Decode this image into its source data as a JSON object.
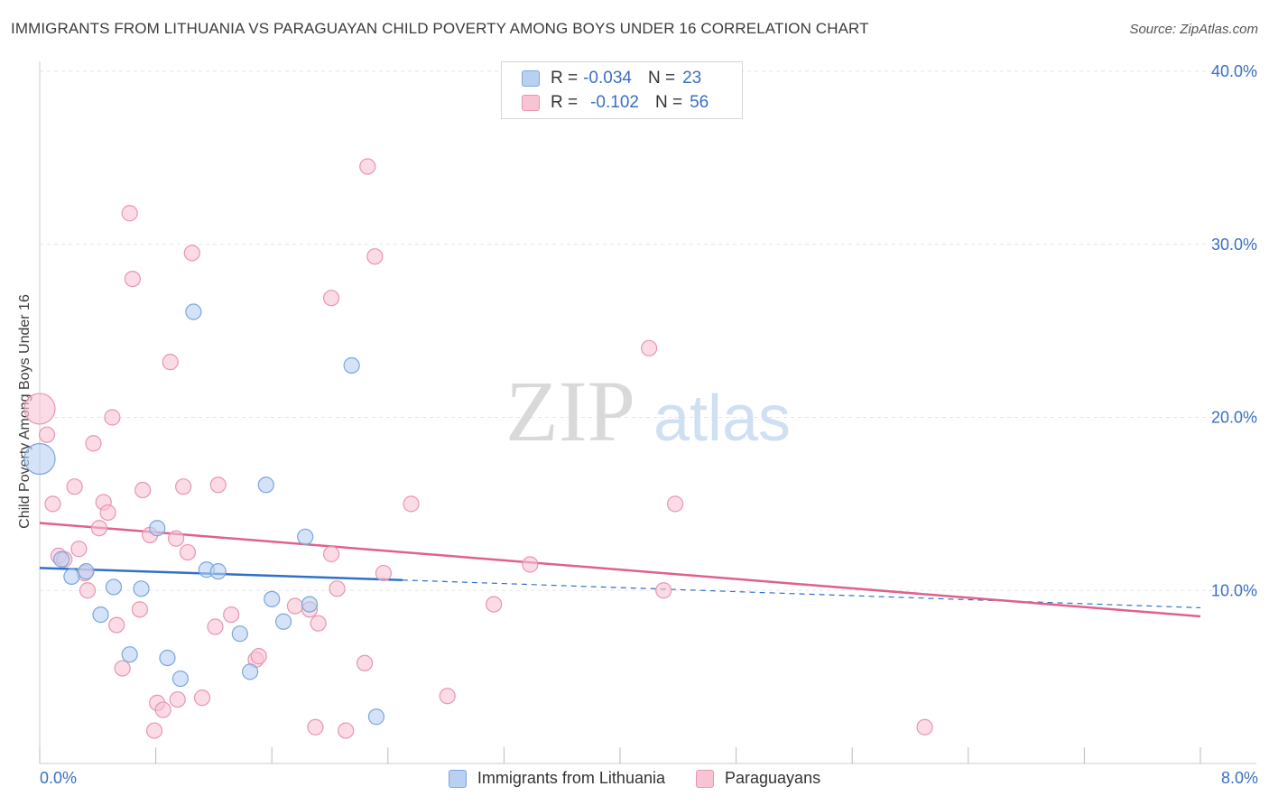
{
  "chart_data": {
    "type": "scatter",
    "title": "IMMIGRANTS FROM LITHUANIA VS PARAGUAYAN CHILD POVERTY AMONG BOYS UNDER 16 CORRELATION CHART",
    "source": "Source: ZipAtlas.com",
    "xlabel": "",
    "ylabel": "Child Poverty Among Boys Under 16",
    "xlim": [
      0,
      8
    ],
    "ylim": [
      0,
      40
    ],
    "x_tick_labels": [
      "0.0%",
      "8.0%"
    ],
    "y_ticks": [
      10,
      20,
      30,
      40
    ],
    "y_tick_labels": [
      "10.0%",
      "20.0%",
      "30.0%",
      "40.0%"
    ],
    "watermark": {
      "zip": "ZIP",
      "atlas": "atlas"
    },
    "legend": {
      "r_label": "R =",
      "n_label": "N =",
      "rows": [
        {
          "name": "Immigrants from Lithuania",
          "r": "-0.034",
          "n": "23"
        },
        {
          "name": "Paraguayans",
          "r": "-0.102",
          "n": "56"
        }
      ]
    },
    "colors": {
      "lithuania_fill": "#b8d1f3",
      "lithuania_stroke": "#7aa6dc",
      "lithuania_line": "#3070c8",
      "paraguay_fill": "#f8c3d3",
      "paraguay_stroke": "#e896b0",
      "paraguay_line": "#e0608e",
      "axis_text": "#3a6fc4",
      "grid": "#e6e6e6"
    },
    "series": [
      {
        "name": "Immigrants from Lithuania",
        "points": [
          {
            "x": 0.0,
            "y": 17.6,
            "big": true
          },
          {
            "x": 0.15,
            "y": 11.8
          },
          {
            "x": 0.22,
            "y": 10.8
          },
          {
            "x": 0.32,
            "y": 11.1
          },
          {
            "x": 0.42,
            "y": 8.6
          },
          {
            "x": 0.51,
            "y": 10.2
          },
          {
            "x": 0.62,
            "y": 6.3
          },
          {
            "x": 0.7,
            "y": 10.1
          },
          {
            "x": 0.81,
            "y": 13.6
          },
          {
            "x": 0.88,
            "y": 6.1
          },
          {
            "x": 0.97,
            "y": 4.9
          },
          {
            "x": 1.06,
            "y": 26.1
          },
          {
            "x": 1.15,
            "y": 11.2
          },
          {
            "x": 1.23,
            "y": 11.1
          },
          {
            "x": 1.38,
            "y": 7.5
          },
          {
            "x": 1.45,
            "y": 5.3
          },
          {
            "x": 1.56,
            "y": 16.1
          },
          {
            "x": 1.6,
            "y": 9.5
          },
          {
            "x": 1.68,
            "y": 8.2
          },
          {
            "x": 1.83,
            "y": 13.1
          },
          {
            "x": 1.86,
            "y": 9.2
          },
          {
            "x": 2.15,
            "y": 23.0
          },
          {
            "x": 2.32,
            "y": 2.7
          }
        ],
        "trend": {
          "x0": 0.0,
          "y0": 11.3,
          "x1": 2.5,
          "y1": 10.6,
          "dash_to_x": 8.0,
          "dash_to_y": 9.0
        }
      },
      {
        "name": "Paraguayans",
        "points": [
          {
            "x": 0.0,
            "y": 20.5,
            "big": true
          },
          {
            "x": 0.05,
            "y": 19.0
          },
          {
            "x": 0.09,
            "y": 15.0
          },
          {
            "x": 0.13,
            "y": 12.0
          },
          {
            "x": 0.17,
            "y": 11.8
          },
          {
            "x": 0.24,
            "y": 16.0
          },
          {
            "x": 0.27,
            "y": 12.4
          },
          {
            "x": 0.31,
            "y": 11.0
          },
          {
            "x": 0.33,
            "y": 10.0
          },
          {
            "x": 0.37,
            "y": 18.5
          },
          {
            "x": 0.41,
            "y": 13.6
          },
          {
            "x": 0.44,
            "y": 15.1
          },
          {
            "x": 0.47,
            "y": 14.5
          },
          {
            "x": 0.5,
            "y": 20.0
          },
          {
            "x": 0.53,
            "y": 8.0
          },
          {
            "x": 0.57,
            "y": 5.5
          },
          {
            "x": 0.62,
            "y": 31.8
          },
          {
            "x": 0.64,
            "y": 28.0
          },
          {
            "x": 0.69,
            "y": 8.9
          },
          {
            "x": 0.71,
            "y": 15.8
          },
          {
            "x": 0.76,
            "y": 13.2
          },
          {
            "x": 0.79,
            "y": 1.9
          },
          {
            "x": 0.81,
            "y": 3.5
          },
          {
            "x": 0.85,
            "y": 3.1
          },
          {
            "x": 0.9,
            "y": 23.2
          },
          {
            "x": 0.94,
            "y": 13.0
          },
          {
            "x": 0.95,
            "y": 3.7
          },
          {
            "x": 0.99,
            "y": 16.0
          },
          {
            "x": 1.02,
            "y": 12.2
          },
          {
            "x": 1.05,
            "y": 29.5
          },
          {
            "x": 1.12,
            "y": 3.8
          },
          {
            "x": 1.21,
            "y": 7.9
          },
          {
            "x": 1.23,
            "y": 16.1
          },
          {
            "x": 1.32,
            "y": 8.6
          },
          {
            "x": 1.49,
            "y": 6.0
          },
          {
            "x": 1.51,
            "y": 6.2
          },
          {
            "x": 1.76,
            "y": 9.1
          },
          {
            "x": 1.86,
            "y": 8.9
          },
          {
            "x": 1.9,
            "y": 2.1
          },
          {
            "x": 1.92,
            "y": 8.1
          },
          {
            "x": 2.01,
            "y": 12.1
          },
          {
            "x": 2.01,
            "y": 26.9
          },
          {
            "x": 2.05,
            "y": 10.1
          },
          {
            "x": 2.11,
            "y": 1.9
          },
          {
            "x": 2.26,
            "y": 34.5
          },
          {
            "x": 2.24,
            "y": 5.8
          },
          {
            "x": 2.31,
            "y": 29.3
          },
          {
            "x": 2.37,
            "y": 11.0
          },
          {
            "x": 2.56,
            "y": 15.0
          },
          {
            "x": 2.81,
            "y": 3.9
          },
          {
            "x": 3.13,
            "y": 9.2
          },
          {
            "x": 3.38,
            "y": 11.5
          },
          {
            "x": 4.2,
            "y": 24.0
          },
          {
            "x": 4.38,
            "y": 15.0
          },
          {
            "x": 6.1,
            "y": 2.1
          },
          {
            "x": 4.3,
            "y": 10.0
          }
        ],
        "trend": {
          "x0": 0.0,
          "y0": 13.9,
          "x1": 8.0,
          "y1": 8.5
        }
      }
    ]
  }
}
